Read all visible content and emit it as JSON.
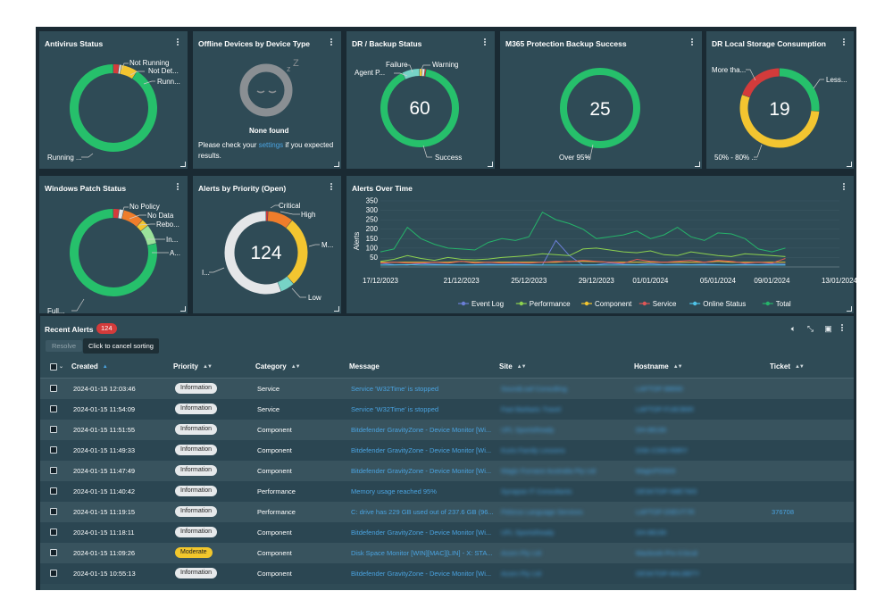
{
  "colors": {
    "green": "#26c06b",
    "red": "#d33b3b",
    "yellow": "#f3c530",
    "orange": "#ef7d2b",
    "lightgray": "#e4e6e8",
    "lightgreen": "#9be19a",
    "teal": "#77d3c6",
    "link": "#4aa3e0"
  },
  "widgets": {
    "antivirus": {
      "title": "Antivirus Status",
      "labels": [
        "Not Running",
        "Not Det...",
        "Runn...",
        "Running ..."
      ]
    },
    "offline": {
      "title": "Offline Devices by Device Type",
      "none_title": "None found",
      "msg_before": "Please check your ",
      "msg_link": "settings",
      "msg_after": " if you expected results.",
      "sleep_icon": "sleeping-face-icon"
    },
    "dr_backup": {
      "title": "DR / Backup Status",
      "center": "60",
      "labels": [
        "Failure",
        "Warning",
        "Agent P...",
        "Success"
      ]
    },
    "m365": {
      "title": "M365 Protection Backup Success",
      "center": "25",
      "labels": [
        "Over 95%"
      ]
    },
    "dr_storage": {
      "title": "DR Local Storage Consumption",
      "center": "19",
      "labels": [
        "More tha...",
        "Less...",
        "50% - 80% ..."
      ]
    },
    "patch": {
      "title": "Windows Patch Status",
      "labels": [
        "No Policy",
        "No Data",
        "Rebo...",
        "In...",
        "A...",
        "Full..."
      ]
    },
    "priority": {
      "title": "Alerts by Priority (Open)",
      "center": "124",
      "labels": [
        "Critical",
        "High",
        "M...",
        "I...",
        "Low"
      ]
    },
    "over_time": {
      "title": "Alerts Over Time"
    }
  },
  "chart_data": {
    "type": "line",
    "title": "Alerts Over Time",
    "ylabel": "Alerts",
    "ylim": [
      0,
      350
    ],
    "yticks": [
      50,
      100,
      150,
      200,
      250,
      300,
      350
    ],
    "x_tick_labels": [
      "17/12/2023",
      "21/12/2023",
      "25/12/2023",
      "29/12/2023",
      "01/01/2024",
      "05/01/2024",
      "09/01/2024",
      "13/01/2024"
    ],
    "x_count": 31,
    "x_tick_index": [
      0,
      6,
      11,
      16,
      20,
      25,
      29,
      34
    ],
    "legend_position": "bottom",
    "series": [
      {
        "name": "Event Log",
        "color": "#6b7fd7",
        "values": [
          20,
          12,
          10,
          18,
          14,
          12,
          10,
          12,
          14,
          12,
          14,
          12,
          10,
          140,
          60,
          10,
          12,
          20,
          14,
          12,
          18,
          12,
          14,
          12,
          14,
          12,
          10,
          14,
          12,
          16,
          14
        ]
      },
      {
        "name": "Performance",
        "color": "#8dd14f",
        "values": [
          30,
          40,
          60,
          45,
          35,
          50,
          40,
          38,
          42,
          50,
          55,
          60,
          70,
          65,
          60,
          95,
          100,
          90,
          80,
          75,
          85,
          65,
          60,
          80,
          70,
          60,
          55,
          70,
          65,
          60,
          55
        ]
      },
      {
        "name": "Component",
        "color": "#f3c530",
        "values": [
          25,
          25,
          25,
          25,
          25,
          25,
          30,
          25,
          25,
          25,
          25,
          25,
          25,
          25,
          30,
          30,
          28,
          25,
          25,
          25,
          25,
          25,
          25,
          25,
          25,
          30,
          25,
          25,
          25,
          25,
          25
        ]
      },
      {
        "name": "Service",
        "color": "#e05757",
        "values": [
          20,
          25,
          20,
          20,
          25,
          20,
          30,
          20,
          25,
          20,
          22,
          20,
          25,
          30,
          28,
          35,
          30,
          25,
          20,
          40,
          30,
          25,
          30,
          35,
          25,
          35,
          30,
          20,
          25,
          20,
          45
        ]
      },
      {
        "name": "Online Status",
        "color": "#4fc3e8",
        "values": [
          10,
          10,
          12,
          10,
          10,
          10,
          10,
          10,
          10,
          10,
          10,
          10,
          10,
          10,
          10,
          10,
          10,
          10,
          10,
          10,
          10,
          10,
          10,
          10,
          10,
          10,
          10,
          10,
          10,
          10,
          10
        ]
      },
      {
        "name": "Total",
        "color": "#26b36a",
        "values": [
          80,
          95,
          210,
          150,
          120,
          100,
          95,
          90,
          130,
          150,
          140,
          160,
          290,
          250,
          230,
          200,
          150,
          160,
          170,
          190,
          150,
          170,
          210,
          160,
          140,
          180,
          175,
          150,
          95,
          80,
          100
        ]
      }
    ]
  },
  "recent_alerts": {
    "title": "Recent Alerts",
    "count": "124",
    "resolve": "Resolve",
    "tooltip": "Click to cancel sorting",
    "toolbar_icons": [
      "sound-icon",
      "collapse-icon",
      "columns-icon",
      "more-icon"
    ],
    "columns": [
      "Created",
      "Priority",
      "Category",
      "Message",
      "Site",
      "Hostname",
      "Ticket"
    ],
    "rows": [
      {
        "created": "2024-01-15 12:03:46",
        "priority": "Information",
        "category": "Service",
        "message": "Service 'W32Time' is stopped",
        "site": "SoundLoaf Consulting",
        "hostname": "LAPTOP-88890",
        "ticket": ""
      },
      {
        "created": "2024-01-15 11:54:09",
        "priority": "Information",
        "category": "Service",
        "message": "Service 'W32Time' is stopped",
        "site": "Fast Barbaric Travel",
        "hostname": "LAPTOP-F18CB6R",
        "ticket": ""
      },
      {
        "created": "2024-01-15 11:51:55",
        "priority": "Information",
        "category": "Component",
        "message": "Bitdefender GravityZone - Device Monitor [Wi...",
        "site": "UFL SportsReady",
        "hostname": "DH-88190",
        "ticket": ""
      },
      {
        "created": "2024-01-15 11:49:33",
        "priority": "Information",
        "category": "Component",
        "message": "Bitdefender GravityZone - Device Monitor [Wi...",
        "site": "Kurio Family Lessons",
        "hostname": "DSK-C000-R8RY",
        "ticket": ""
      },
      {
        "created": "2024-01-15 11:47:49",
        "priority": "Information",
        "category": "Component",
        "message": "Bitdefender GravityZone - Device Monitor [Wi...",
        "site": "Magic Furnace Australia Pty Ltd",
        "hostname": "MagicPOS03",
        "ticket": ""
      },
      {
        "created": "2024-01-15 11:40:42",
        "priority": "Information",
        "category": "Performance",
        "message": "Memory usage reached 95%",
        "site": "Synapse IT Consultants",
        "hostname": "DESKTOP-N8E7W3",
        "ticket": ""
      },
      {
        "created": "2024-01-15 11:19:15",
        "priority": "Information",
        "category": "Performance",
        "message": "C: drive has 229 GB used out of 237.6 GB (96...",
        "site": "Pelorus Language Services",
        "hostname": "LAPTOP-D5EVT7R",
        "ticket": "376708"
      },
      {
        "created": "2024-01-15 11:18:11",
        "priority": "Information",
        "category": "Component",
        "message": "Bitdefender GravityZone - Device Monitor [Wi...",
        "site": "UFL SportsReady",
        "hostname": "DH-88190",
        "ticket": ""
      },
      {
        "created": "2024-01-15 11:09:26",
        "priority": "Moderate",
        "category": "Component",
        "message": "Disk Space Monitor [WIN][MAC][LIN] - X: STA...",
        "site": "Acorn Pty Ltd",
        "hostname": "Macbook-Pro-3.local",
        "ticket": ""
      },
      {
        "created": "2024-01-15 10:55:13",
        "priority": "Information",
        "category": "Component",
        "message": "Bitdefender GravityZone - Device Monitor [Wi...",
        "site": "Acorn Pty Ltd",
        "hostname": "DESKTOP-8HLBBTY",
        "ticket": ""
      }
    ]
  }
}
